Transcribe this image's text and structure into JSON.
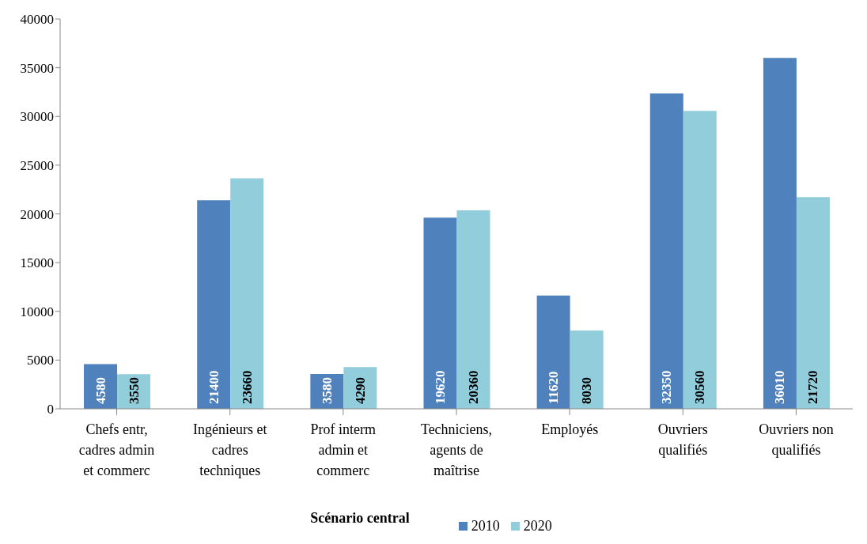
{
  "chart_data": {
    "type": "bar",
    "categories": [
      "Chefs entr, cadres admin et commerc",
      "Ingénieurs et cadres techniques",
      "Prof interm admin et commerc",
      "Techniciens, agents de maîtrise",
      "Employés",
      "Ouvriers qualifiés",
      "Ouvriers non qualifiés"
    ],
    "series": [
      {
        "name": "2010",
        "color": "#4f81bd",
        "values": [
          4580,
          21400,
          3580,
          19620,
          11620,
          32350,
          36010
        ]
      },
      {
        "name": "2020",
        "color": "#92cddc",
        "values": [
          3550,
          23660,
          4290,
          20360,
          8030,
          30560,
          21720
        ]
      }
    ],
    "ylim": [
      0,
      40000
    ],
    "yticks": [
      0,
      5000,
      10000,
      15000,
      20000,
      25000,
      30000,
      35000,
      40000
    ],
    "grid": false,
    "legend": "bottom",
    "legend_title": "Scénario central",
    "data_labels": true
  }
}
